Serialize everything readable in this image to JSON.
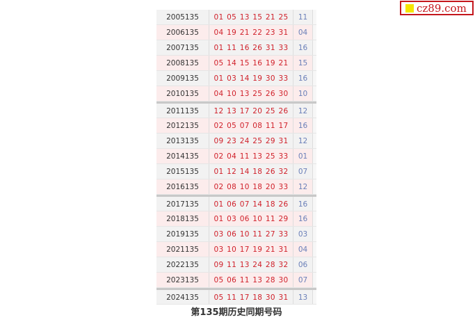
{
  "watermark": {
    "text": "cz89.com",
    "color": "#c4161c",
    "square_color": "#f5e600"
  },
  "rows": [
    {
      "issue": "2005135",
      "red": "01 05 13 15 21 25",
      "blue": "11"
    },
    {
      "issue": "2006135",
      "red": "04 19 21 22 23 31",
      "blue": "04"
    },
    {
      "issue": "2007135",
      "red": "01 11 16 26 31 33",
      "blue": "16"
    },
    {
      "issue": "2008135",
      "red": "05 14 15 16 19 21",
      "blue": "15"
    },
    {
      "issue": "2009135",
      "red": "01 03 14 19 30 33",
      "blue": "16"
    },
    {
      "issue": "2010135",
      "red": "04 10 13 25 26 30",
      "blue": "10"
    },
    {
      "issue": "2011135",
      "red": "12 13 17 20 25 26",
      "blue": "12"
    },
    {
      "issue": "2012135",
      "red": "02 05 07 08 11 17",
      "blue": "16"
    },
    {
      "issue": "2013135",
      "red": "09 23 24 25 29 31",
      "blue": "12"
    },
    {
      "issue": "2014135",
      "red": "02 04 11 13 25 33",
      "blue": "01"
    },
    {
      "issue": "2015135",
      "red": "01 12 14 18 26 32",
      "blue": "07"
    },
    {
      "issue": "2016135",
      "red": "02 08 10 18 20 33",
      "blue": "12"
    },
    {
      "issue": "2017135",
      "red": "01 06 07 14 18 26",
      "blue": "16"
    },
    {
      "issue": "2018135",
      "red": "01 03 06 10 11 29",
      "blue": "16"
    },
    {
      "issue": "2019135",
      "red": "03 06 10 11 27 33",
      "blue": "03"
    },
    {
      "issue": "2021135",
      "red": "03 10 17 19 21 31",
      "blue": "04"
    },
    {
      "issue": "2022135",
      "red": "09 11 13 24 28 32",
      "blue": "06"
    },
    {
      "issue": "2023135",
      "red": "05 06 11 13 28 30",
      "blue": "07"
    },
    {
      "issue": "2024135",
      "red": "05 11 17 18 30 31",
      "blue": "13"
    }
  ],
  "caption": "第135期历史同期号码"
}
